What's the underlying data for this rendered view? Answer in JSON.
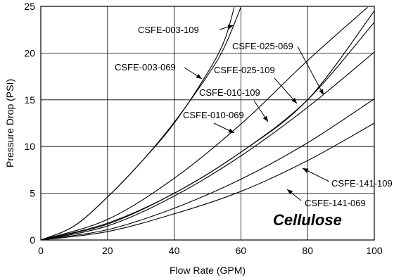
{
  "chart_data": {
    "type": "line",
    "xlabel": "Flow Rate (GPM)",
    "ylabel": "Pressure Drop (PSI)",
    "xlim": [
      0,
      100
    ],
    "ylim": [
      0,
      25
    ],
    "xticks": [
      0,
      20,
      40,
      60,
      80,
      100
    ],
    "yticks": [
      0,
      5,
      10,
      15,
      20,
      25
    ],
    "grid": true,
    "annotation": "Cellulose",
    "series": [
      {
        "name": "CSFE-003-109",
        "x": [
          0,
          10,
          20,
          30,
          40,
          50,
          55,
          60
        ],
        "y": [
          0,
          1.5,
          4.6,
          8.3,
          12.6,
          17.6,
          20.6,
          24.9
        ]
      },
      {
        "name": "CSFE-003-069",
        "x": [
          0,
          10,
          20,
          30,
          40,
          50,
          55,
          58
        ],
        "y": [
          0,
          1.5,
          4.6,
          8.3,
          12.5,
          17.9,
          21.3,
          24.9
        ]
      },
      {
        "name": "CSFE-010-109",
        "x": [
          0,
          20,
          40,
          60,
          80,
          100
        ],
        "y": [
          0,
          1.8,
          5.0,
          9.4,
          15.0,
          23.3
        ]
      },
      {
        "name": "CSFE-010-069",
        "x": [
          0,
          20,
          40,
          60,
          80,
          98
        ],
        "y": [
          0,
          2.2,
          6.6,
          12.4,
          19.2,
          24.9
        ]
      },
      {
        "name": "CSFE-025-109",
        "x": [
          0,
          20,
          40,
          60,
          80,
          100
        ],
        "y": [
          0,
          1.5,
          4.7,
          9.0,
          14.2,
          20.1
        ]
      },
      {
        "name": "CSFE-025-069",
        "x": [
          0,
          20,
          40,
          60,
          80,
          100
        ],
        "y": [
          0,
          1.7,
          5.0,
          9.4,
          15.0,
          24.5
        ]
      },
      {
        "name": "CSFE-141-109",
        "x": [
          0,
          20,
          40,
          60,
          80,
          100
        ],
        "y": [
          0,
          0.9,
          2.8,
          5.2,
          8.5,
          12.5
        ]
      },
      {
        "name": "CSFE-141-069",
        "x": [
          0,
          20,
          40,
          60,
          80,
          100
        ],
        "y": [
          0,
          1.1,
          3.4,
          6.5,
          10.4,
          15.1
        ]
      }
    ],
    "labels": [
      {
        "text": "CSFE-003-109",
        "series": "CSFE-003-109"
      },
      {
        "text": "CSFE-003-069",
        "series": "CSFE-003-069"
      },
      {
        "text": "CSFE-025-069",
        "series": "CSFE-025-069"
      },
      {
        "text": "CSFE-025-109",
        "series": "CSFE-025-109"
      },
      {
        "text": "CSFE-010-109",
        "series": "CSFE-010-109"
      },
      {
        "text": "CSFE-010-069",
        "series": "CSFE-010-069"
      },
      {
        "text": "CSFE-141-109",
        "series": "CSFE-141-109"
      },
      {
        "text": "CSFE-141-069",
        "series": "CSFE-141-069"
      }
    ]
  }
}
